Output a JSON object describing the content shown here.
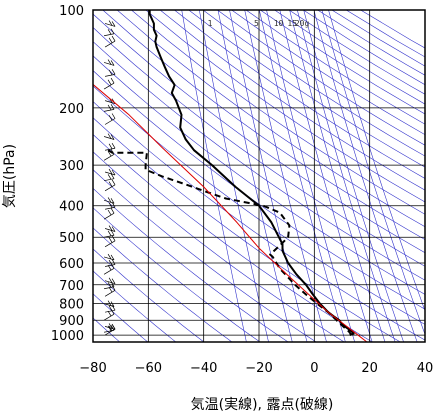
{
  "chart_data": {
    "type": "line",
    "title": "",
    "xlabel": "気温(実線), 露点(破線)",
    "ylabel": "気圧(hPa)",
    "x_axis": {
      "min": -80,
      "max": 40,
      "ticks": [
        -80,
        -60,
        -40,
        -20,
        0,
        20,
        40
      ],
      "tick_labels": [
        "−80",
        "−60",
        "−40",
        "−20",
        "0",
        "20",
        "40"
      ]
    },
    "y_axis": {
      "scale": "log",
      "min": 1050,
      "max": 100,
      "ticks": [
        100,
        200,
        300,
        400,
        500,
        600,
        700,
        800,
        900,
        1000
      ],
      "tick_labels": [
        "100",
        "200",
        "300",
        "400",
        "500",
        "600",
        "700",
        "800",
        "900",
        "1000"
      ]
    },
    "mixing_ratio_labels": [
      "1",
      "5",
      "10",
      "15",
      "20g"
    ],
    "mixing_ratio_values": [
      1,
      5,
      10,
      15,
      20
    ],
    "grid": true,
    "colors": {
      "temperature": "#000000",
      "dewpoint": "#000000",
      "parcel": "#dd0000",
      "guides": "#3333cc",
      "grid": "#000000"
    },
    "series": [
      {
        "key": "temperature",
        "style": "solid",
        "points": [
          [
            12.8,
            1000
          ],
          [
            14.2,
            990
          ],
          [
            13.5,
            975
          ],
          [
            12.5,
            960
          ],
          [
            11.0,
            940
          ],
          [
            10.0,
            925
          ],
          [
            9.0,
            900
          ],
          [
            7.0,
            875
          ],
          [
            5.0,
            850
          ],
          [
            2.0,
            800
          ],
          [
            -0.5,
            750
          ],
          [
            -3.0,
            700
          ],
          [
            -6.5,
            650
          ],
          [
            -9.5,
            600
          ],
          [
            -11.5,
            550
          ],
          [
            -11.5,
            525
          ],
          [
            -12.8,
            500
          ],
          [
            -15.5,
            450
          ],
          [
            -20.0,
            400
          ],
          [
            -28.5,
            350
          ],
          [
            -37.0,
            300
          ],
          [
            -43.5,
            270
          ],
          [
            -46.5,
            250
          ],
          [
            -48.5,
            230
          ],
          [
            -48.0,
            210
          ],
          [
            -50.0,
            190
          ],
          [
            -51.5,
            180
          ],
          [
            -50.5,
            170
          ],
          [
            -52.5,
            160
          ],
          [
            -54.0,
            150
          ],
          [
            -55.5,
            140
          ],
          [
            -57.0,
            130
          ],
          [
            -57.5,
            125
          ],
          [
            -57.0,
            120
          ],
          [
            -58.0,
            115
          ],
          [
            -58.0,
            110
          ],
          [
            -59.5,
            103
          ],
          [
            -59.5,
            100
          ]
        ]
      },
      {
        "key": "dewpoint",
        "style": "dashed",
        "points": [
          [
            13.5,
            1000
          ],
          [
            12.5,
            975
          ],
          [
            11.0,
            950
          ],
          [
            8.0,
            900
          ],
          [
            5.0,
            850
          ],
          [
            1.0,
            800
          ],
          [
            -3.0,
            750
          ],
          [
            -7.0,
            700
          ],
          [
            -10.5,
            650
          ],
          [
            -12.5,
            625
          ],
          [
            -15.0,
            575
          ],
          [
            -16.0,
            565
          ],
          [
            -12.5,
            530
          ],
          [
            -9.5,
            500
          ],
          [
            -9.0,
            460
          ],
          [
            -12.5,
            420
          ],
          [
            -18.5,
            400
          ],
          [
            -32.0,
            380
          ],
          [
            -40.0,
            360
          ],
          [
            -46.0,
            345
          ],
          [
            -55.0,
            325
          ],
          [
            -61.0,
            310
          ],
          [
            -61.0,
            300
          ],
          [
            -60.5,
            275
          ],
          [
            -73.0,
            275
          ],
          [
            -74.5,
            270
          ]
        ]
      },
      {
        "key": "parcel",
        "style": "solid",
        "points": [
          [
            19,
            1050
          ],
          [
            14.5,
            980
          ],
          [
            11,
            930
          ],
          [
            5,
            850
          ],
          [
            -2,
            750
          ],
          [
            -10,
            650
          ],
          [
            -20,
            540
          ],
          [
            -28,
            450
          ],
          [
            -40,
            350
          ],
          [
            -55,
            265
          ],
          [
            -67,
            210
          ],
          [
            -82,
            164
          ]
        ]
      }
    ]
  }
}
